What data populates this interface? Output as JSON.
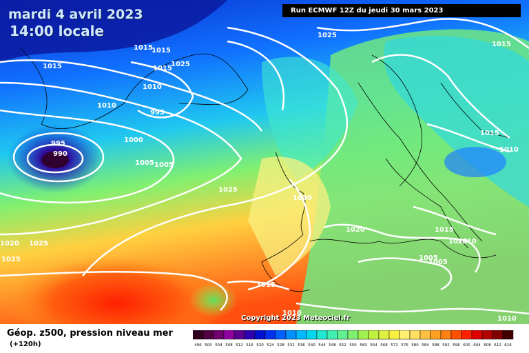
{
  "header": {
    "date": "mardi 4 avril 2023",
    "time": "14:00 locale",
    "run": "Run ECMWF 12Z du jeudi 30 mars 2023"
  },
  "copyright": "Copyright 2023 Meteociel.fr",
  "footer": {
    "title": "Géop. z500, pression niveau mer",
    "subtitle": "(+120h)"
  },
  "isobar_labels": [
    "1015",
    "1015",
    "1015",
    "1025",
    "1015",
    "1010",
    "1010",
    "995",
    "995",
    "990",
    "1000",
    "1005",
    "1005",
    "1025",
    "1030",
    "1025",
    "1015",
    "1010",
    "1020",
    "1015",
    "1010",
    "1010",
    "1005",
    "1005",
    "1020",
    "1025",
    "1025",
    "1015",
    "1010",
    "1010",
    "1015"
  ],
  "legend": {
    "values": [
      "496",
      "500",
      "504",
      "508",
      "512",
      "516",
      "520",
      "524",
      "528",
      "532",
      "536",
      "540",
      "544",
      "548",
      "552",
      "556",
      "560",
      "564",
      "568",
      "572",
      "576",
      "580",
      "584",
      "588",
      "592",
      "596",
      "600",
      "604",
      "608",
      "612",
      "616"
    ],
    "colors": [
      "#300020",
      "#500040",
      "#700070",
      "#9000a0",
      "#5a0090",
      "#3000b0",
      "#0010d0",
      "#0030f0",
      "#0060ff",
      "#0090ff",
      "#00b8ff",
      "#00d8f0",
      "#20e8d0",
      "#40f0b0",
      "#60f090",
      "#80f070",
      "#a0f050",
      "#c0f040",
      "#e0f040",
      "#f8f040",
      "#fff070",
      "#ffe060",
      "#ffc040",
      "#ffa020",
      "#ff8010",
      "#ff5000",
      "#ff2000",
      "#e00000",
      "#b00000",
      "#800000",
      "#400000"
    ]
  }
}
